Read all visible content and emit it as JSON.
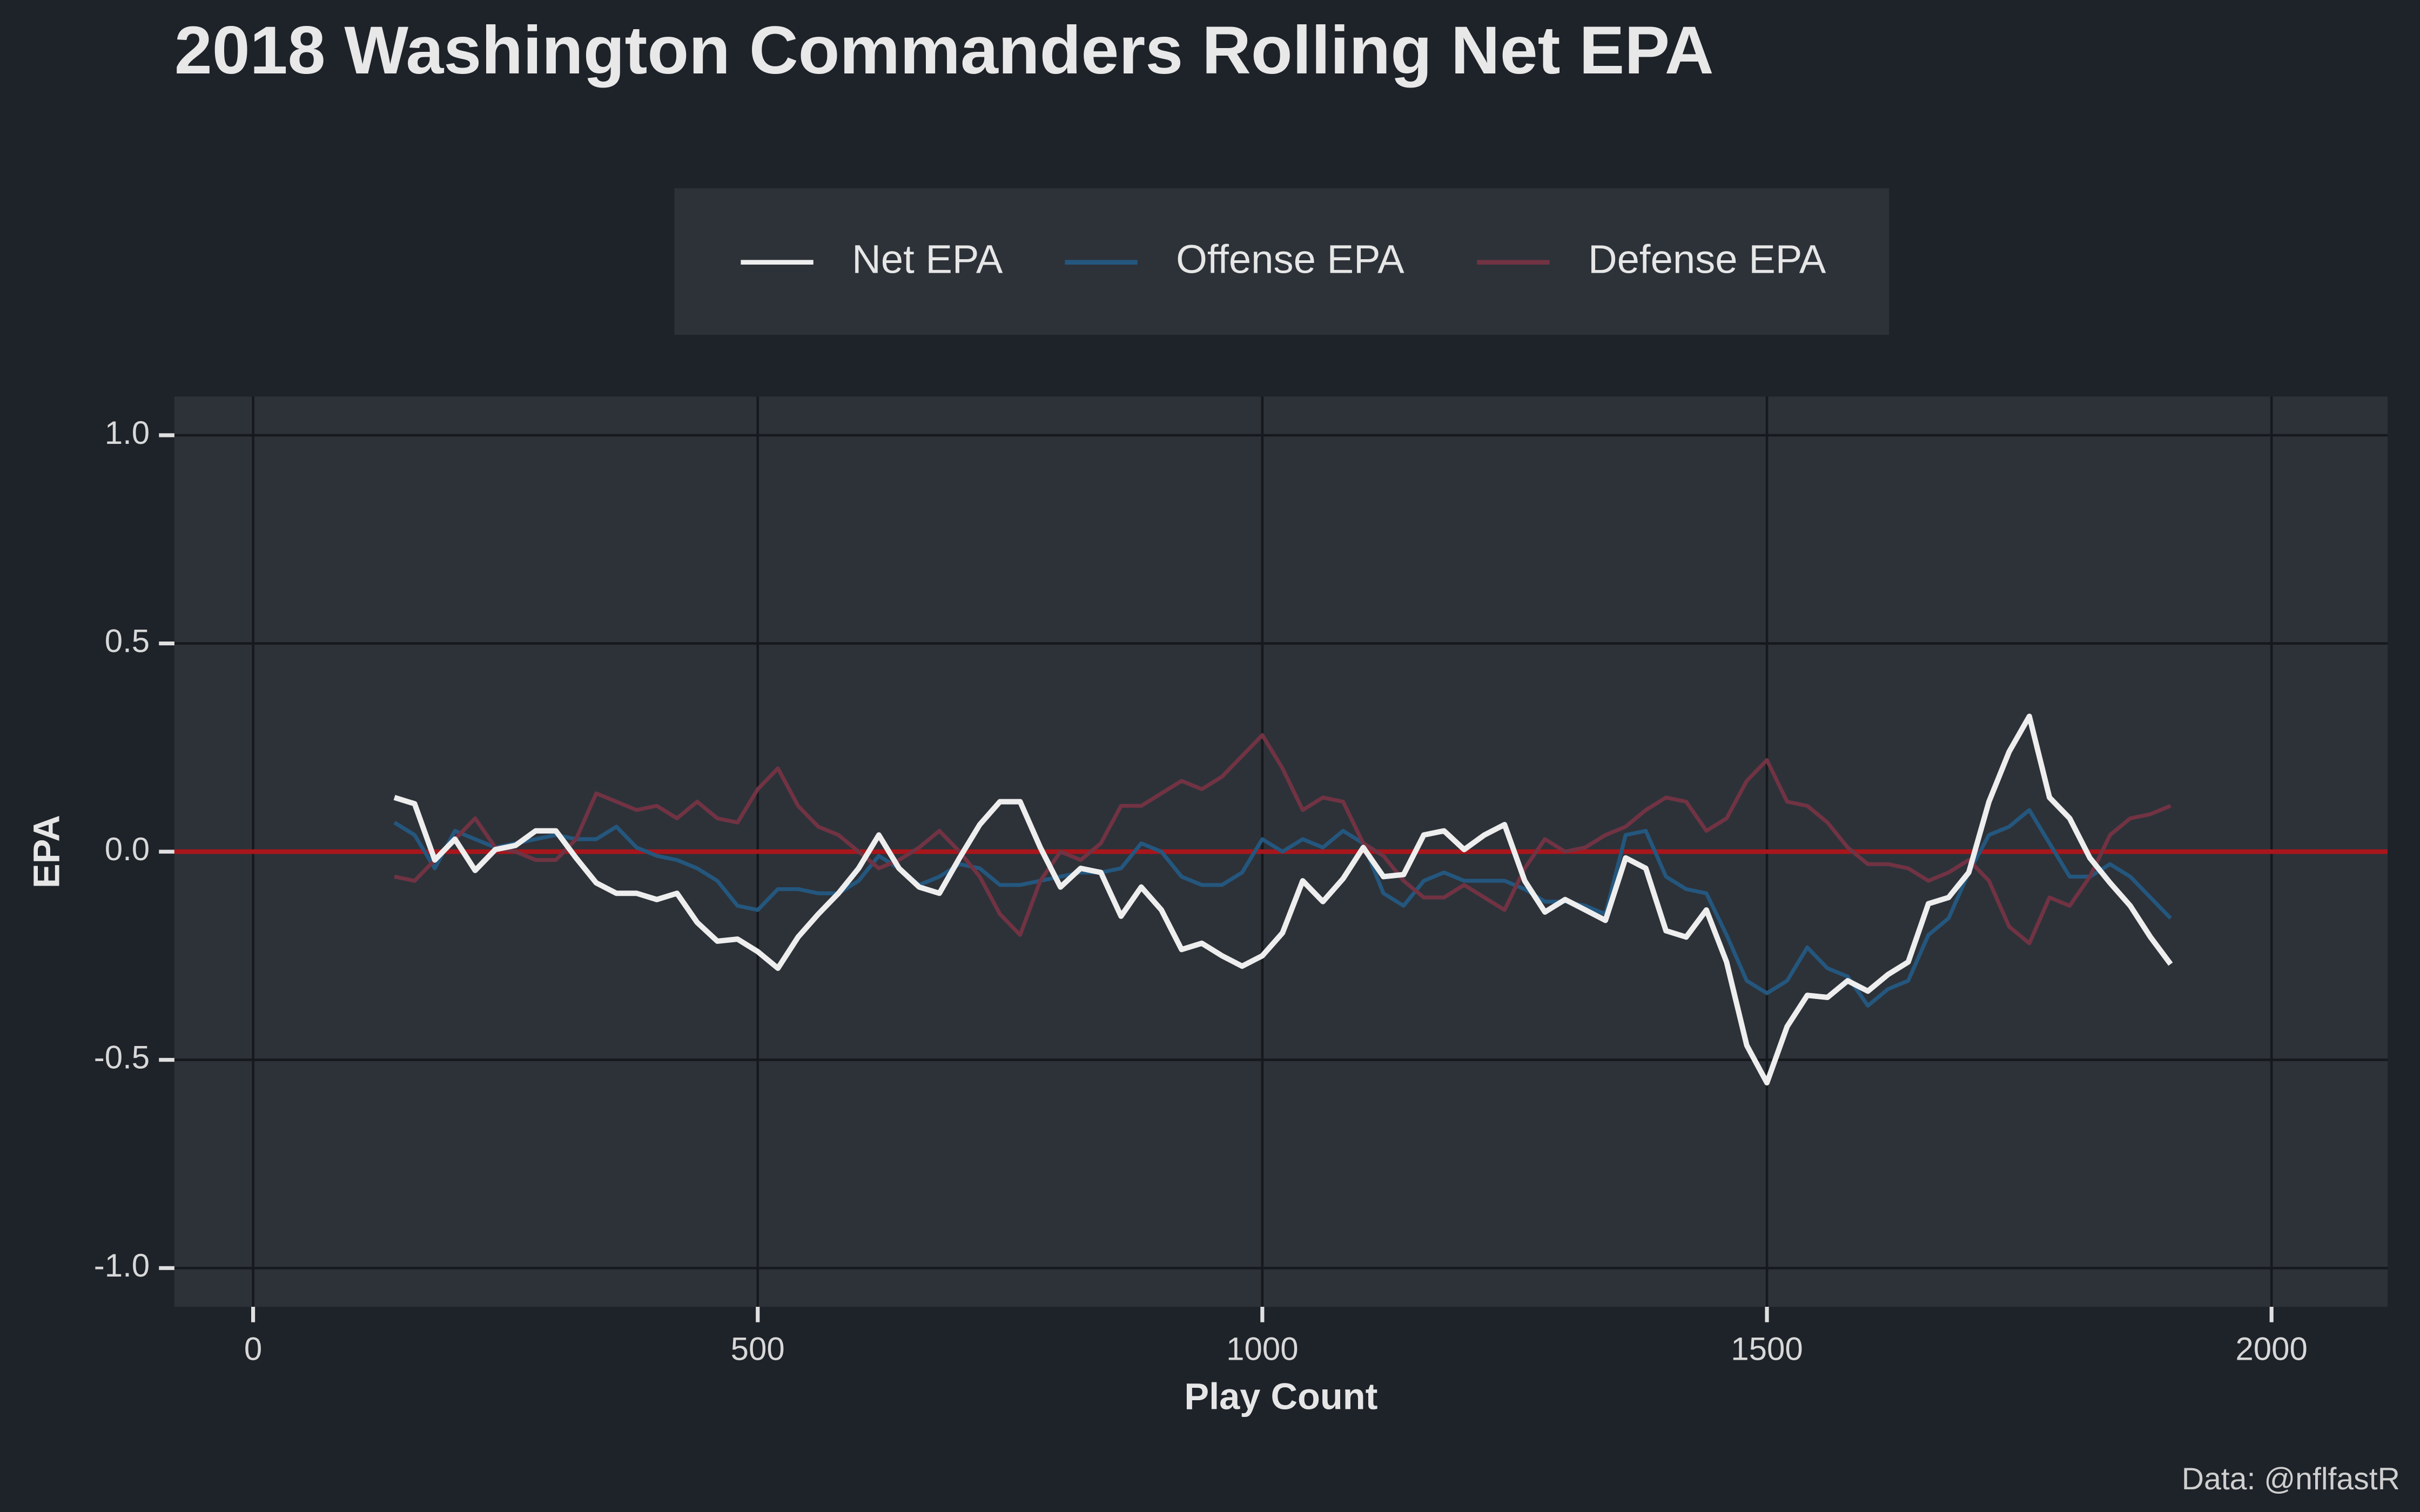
{
  "chart_data": {
    "type": "line",
    "title": "2018 Washington Commanders Rolling Net EPA",
    "xlabel": "Play Count",
    "ylabel": "EPA",
    "caption": "Data: @nflfastR",
    "x": [
      140,
      160,
      180,
      200,
      220,
      240,
      260,
      280,
      300,
      320,
      340,
      360,
      380,
      400,
      420,
      440,
      460,
      480,
      500,
      520,
      540,
      560,
      580,
      600,
      620,
      640,
      660,
      680,
      700,
      720,
      740,
      760,
      780,
      800,
      820,
      840,
      860,
      880,
      900,
      920,
      940,
      960,
      980,
      1000,
      1020,
      1040,
      1060,
      1080,
      1100,
      1120,
      1140,
      1160,
      1180,
      1200,
      1220,
      1240,
      1260,
      1280,
      1300,
      1320,
      1340,
      1360,
      1380,
      1400,
      1420,
      1440,
      1460,
      1480,
      1500,
      1520,
      1540,
      1560,
      1580,
      1600,
      1620,
      1640,
      1660,
      1680,
      1700,
      1720,
      1740,
      1760,
      1780,
      1800,
      1820,
      1840,
      1860,
      1880,
      1900
    ],
    "series": [
      {
        "name": "Offense EPA",
        "color": "#24577e",
        "width": 2.5,
        "values": [
          0.07,
          0.04,
          -0.04,
          0.05,
          0.03,
          0.01,
          0.02,
          0.03,
          0.04,
          0.03,
          0.03,
          0.06,
          0.01,
          -0.01,
          -0.02,
          -0.04,
          -0.07,
          -0.13,
          -0.14,
          -0.09,
          -0.09,
          -0.1,
          -0.1,
          -0.07,
          -0.01,
          -0.04,
          -0.08,
          -0.06,
          -0.03,
          -0.04,
          -0.08,
          -0.08,
          -0.07,
          -0.06,
          -0.05,
          -0.05,
          -0.04,
          0.02,
          0,
          -0.06,
          -0.08,
          -0.08,
          -0.05,
          0.03,
          0,
          0.03,
          0.01,
          0.05,
          0.02,
          -0.1,
          -0.13,
          -0.07,
          -0.05,
          -0.07,
          -0.07,
          -0.07,
          -0.09,
          -0.12,
          -0.12,
          -0.13,
          -0.15,
          0.04,
          0.05,
          -0.06,
          -0.09,
          -0.1,
          -0.2,
          -0.31,
          -0.34,
          -0.31,
          -0.23,
          -0.28,
          -0.3,
          -0.37,
          -0.33,
          -0.31,
          -0.2,
          -0.16,
          -0.05,
          0.04,
          0.06,
          0.1,
          0.02,
          -0.06,
          -0.06,
          -0.03,
          -0.06,
          -0.11,
          -0.16
        ]
      },
      {
        "name": "Defense EPA",
        "color": "#713343",
        "width": 2.5,
        "values": [
          -0.06,
          -0.07,
          -0.02,
          0.03,
          0.08,
          0.01,
          0,
          -0.02,
          -0.02,
          0.03,
          0.14,
          0.12,
          0.1,
          0.11,
          0.08,
          0.12,
          0.08,
          0.07,
          0.15,
          0.2,
          0.11,
          0.06,
          0.04,
          0,
          -0.04,
          -0.02,
          0.01,
          0.05,
          0,
          -0.06,
          -0.15,
          -0.2,
          -0.07,
          0,
          -0.02,
          0.02,
          0.11,
          0.11,
          0.14,
          0.17,
          0.15,
          0.18,
          0.23,
          0.28,
          0.2,
          0.1,
          0.13,
          0.12,
          0.02,
          -0.01,
          -0.07,
          -0.11,
          -0.11,
          -0.08,
          -0.11,
          -0.14,
          -0.04,
          0.03,
          0,
          0.01,
          0.04,
          0.06,
          0.1,
          0.13,
          0.12,
          0.05,
          0.08,
          0.17,
          0.22,
          0.12,
          0.11,
          0.07,
          0.01,
          -0.03,
          -0.03,
          -0.04,
          -0.07,
          -0.05,
          -0.02,
          -0.07,
          -0.18,
          -0.22,
          -0.11,
          -0.13,
          -0.06,
          0.04,
          0.08,
          0.09,
          0.11
        ]
      },
      {
        "name": "Net EPA",
        "color": "#eeeeee",
        "width": 3.5,
        "values": [
          0.13,
          0.115,
          -0.02,
          0.03,
          -0.045,
          0.005,
          0.015,
          0.05,
          0.05,
          -0.015,
          -0.075,
          -0.1,
          -0.1,
          -0.115,
          -0.1,
          -0.17,
          -0.215,
          -0.21,
          -0.24,
          -0.28,
          -0.205,
          -0.15,
          -0.1,
          -0.04,
          0.04,
          -0.04,
          -0.085,
          -0.1,
          -0.015,
          0.065,
          0.12,
          0.12,
          0.01,
          -0.085,
          -0.04,
          -0.05,
          -0.155,
          -0.085,
          -0.14,
          -0.235,
          -0.22,
          -0.25,
          -0.275,
          -0.25,
          -0.195,
          -0.07,
          -0.12,
          -0.065,
          0.01,
          -0.06,
          -0.055,
          0.04,
          0.05,
          0.005,
          0.04,
          0.065,
          -0.07,
          -0.145,
          -0.115,
          -0.14,
          -0.165,
          -0.015,
          -0.04,
          -0.19,
          -0.205,
          -0.14,
          -0.265,
          -0.465,
          -0.555,
          -0.42,
          -0.345,
          -0.35,
          -0.31,
          -0.335,
          -0.295,
          -0.265,
          -0.125,
          -0.11,
          -0.05,
          0.12,
          0.24,
          0.325,
          0.13,
          0.08,
          -0.015,
          -0.075,
          -0.13,
          -0.205,
          -0.27
        ]
      }
    ],
    "legend_order": [
      2,
      0,
      1
    ],
    "reference_line": {
      "value": 0,
      "color": "#a8161c"
    },
    "xlim": [
      -78,
      2115
    ],
    "ylim": [
      -1.093,
      1.093
    ],
    "xticks": [
      0,
      500,
      1000,
      1500,
      2000
    ],
    "yticks": [
      {
        "value": 1,
        "label": "1.0"
      },
      {
        "value": 0.5,
        "label": "0.5"
      },
      {
        "value": 0,
        "label": "0.0"
      },
      {
        "value": -0.5,
        "label": "-0.5"
      },
      {
        "value": -1,
        "label": "-1.0"
      }
    ],
    "grid": true
  }
}
